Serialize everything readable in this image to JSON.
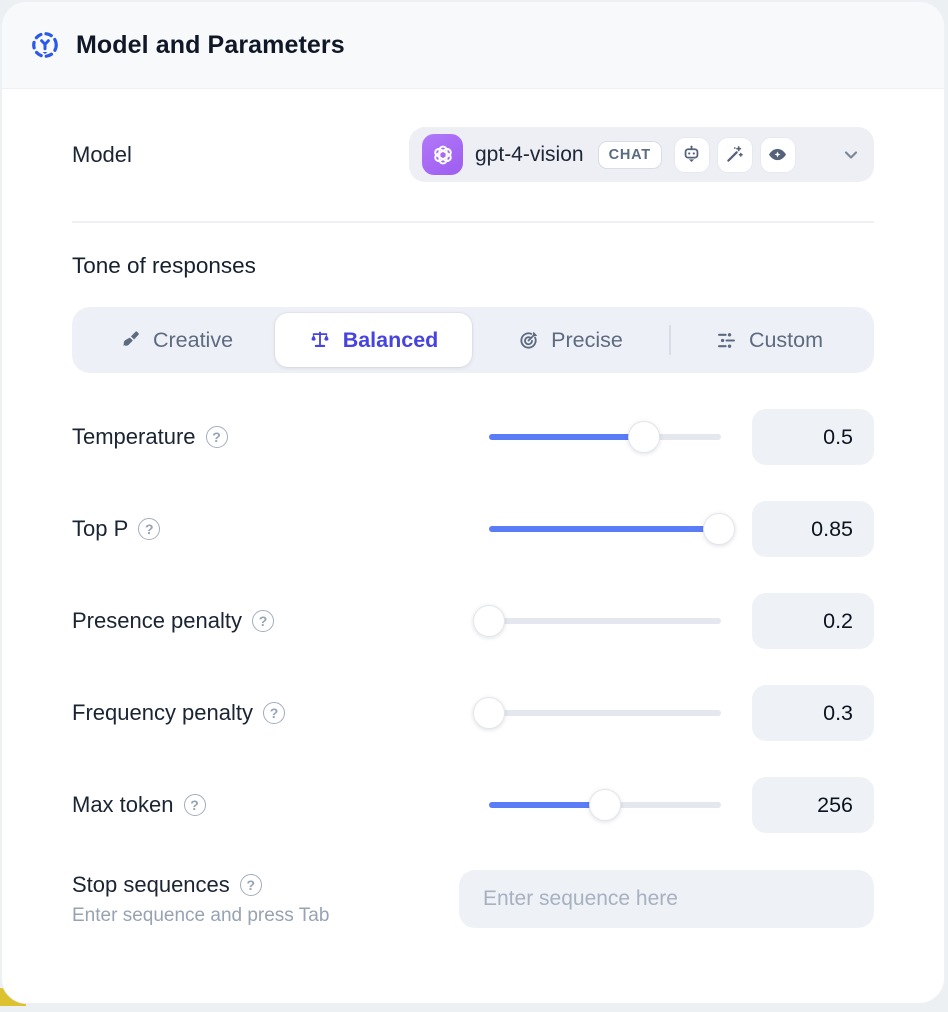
{
  "header": {
    "title": "Model and Parameters"
  },
  "icons": {
    "help_glyph": "?"
  },
  "model_section": {
    "label": "Model",
    "selector": {
      "provider_icon": "openai-logo",
      "model_name": "gpt-4-vision",
      "type_badge": "CHAT",
      "capability_icons": [
        "robot",
        "magic-wand",
        "eye"
      ]
    }
  },
  "tone_section": {
    "heading": "Tone of responses",
    "options": [
      {
        "label": "Creative",
        "icon": "paintbrush",
        "selected": false
      },
      {
        "label": "Balanced",
        "icon": "balance-scale",
        "selected": true
      },
      {
        "label": "Precise",
        "icon": "target-arrow",
        "selected": false
      },
      {
        "label": "Custom",
        "icon": "sliders",
        "selected": false
      }
    ]
  },
  "parameters": [
    {
      "label": "Temperature",
      "value": "0.5",
      "slider_percent": 67
    },
    {
      "label": "Top P",
      "value": "0.85",
      "slider_percent": 99
    },
    {
      "label": "Presence penalty",
      "value": "0.2",
      "slider_percent": 0
    },
    {
      "label": "Frequency penalty",
      "value": "0.3",
      "slider_percent": 0
    },
    {
      "label": "Max token",
      "value": "256",
      "slider_percent": 50
    }
  ],
  "stop_section": {
    "label": "Stop sequences",
    "hint": "Enter sequence and press Tab",
    "placeholder": "Enter sequence here"
  },
  "colors": {
    "accent_blue": "#5b7cf7",
    "selected_indigo": "#4643e0",
    "header_icon_blue": "#2b59e8",
    "provider_purple": "#a76df6",
    "field_bg": "#eef1f6",
    "slider_track": "#e4e8ee",
    "behind_card_yellow": "#dcc22f"
  }
}
